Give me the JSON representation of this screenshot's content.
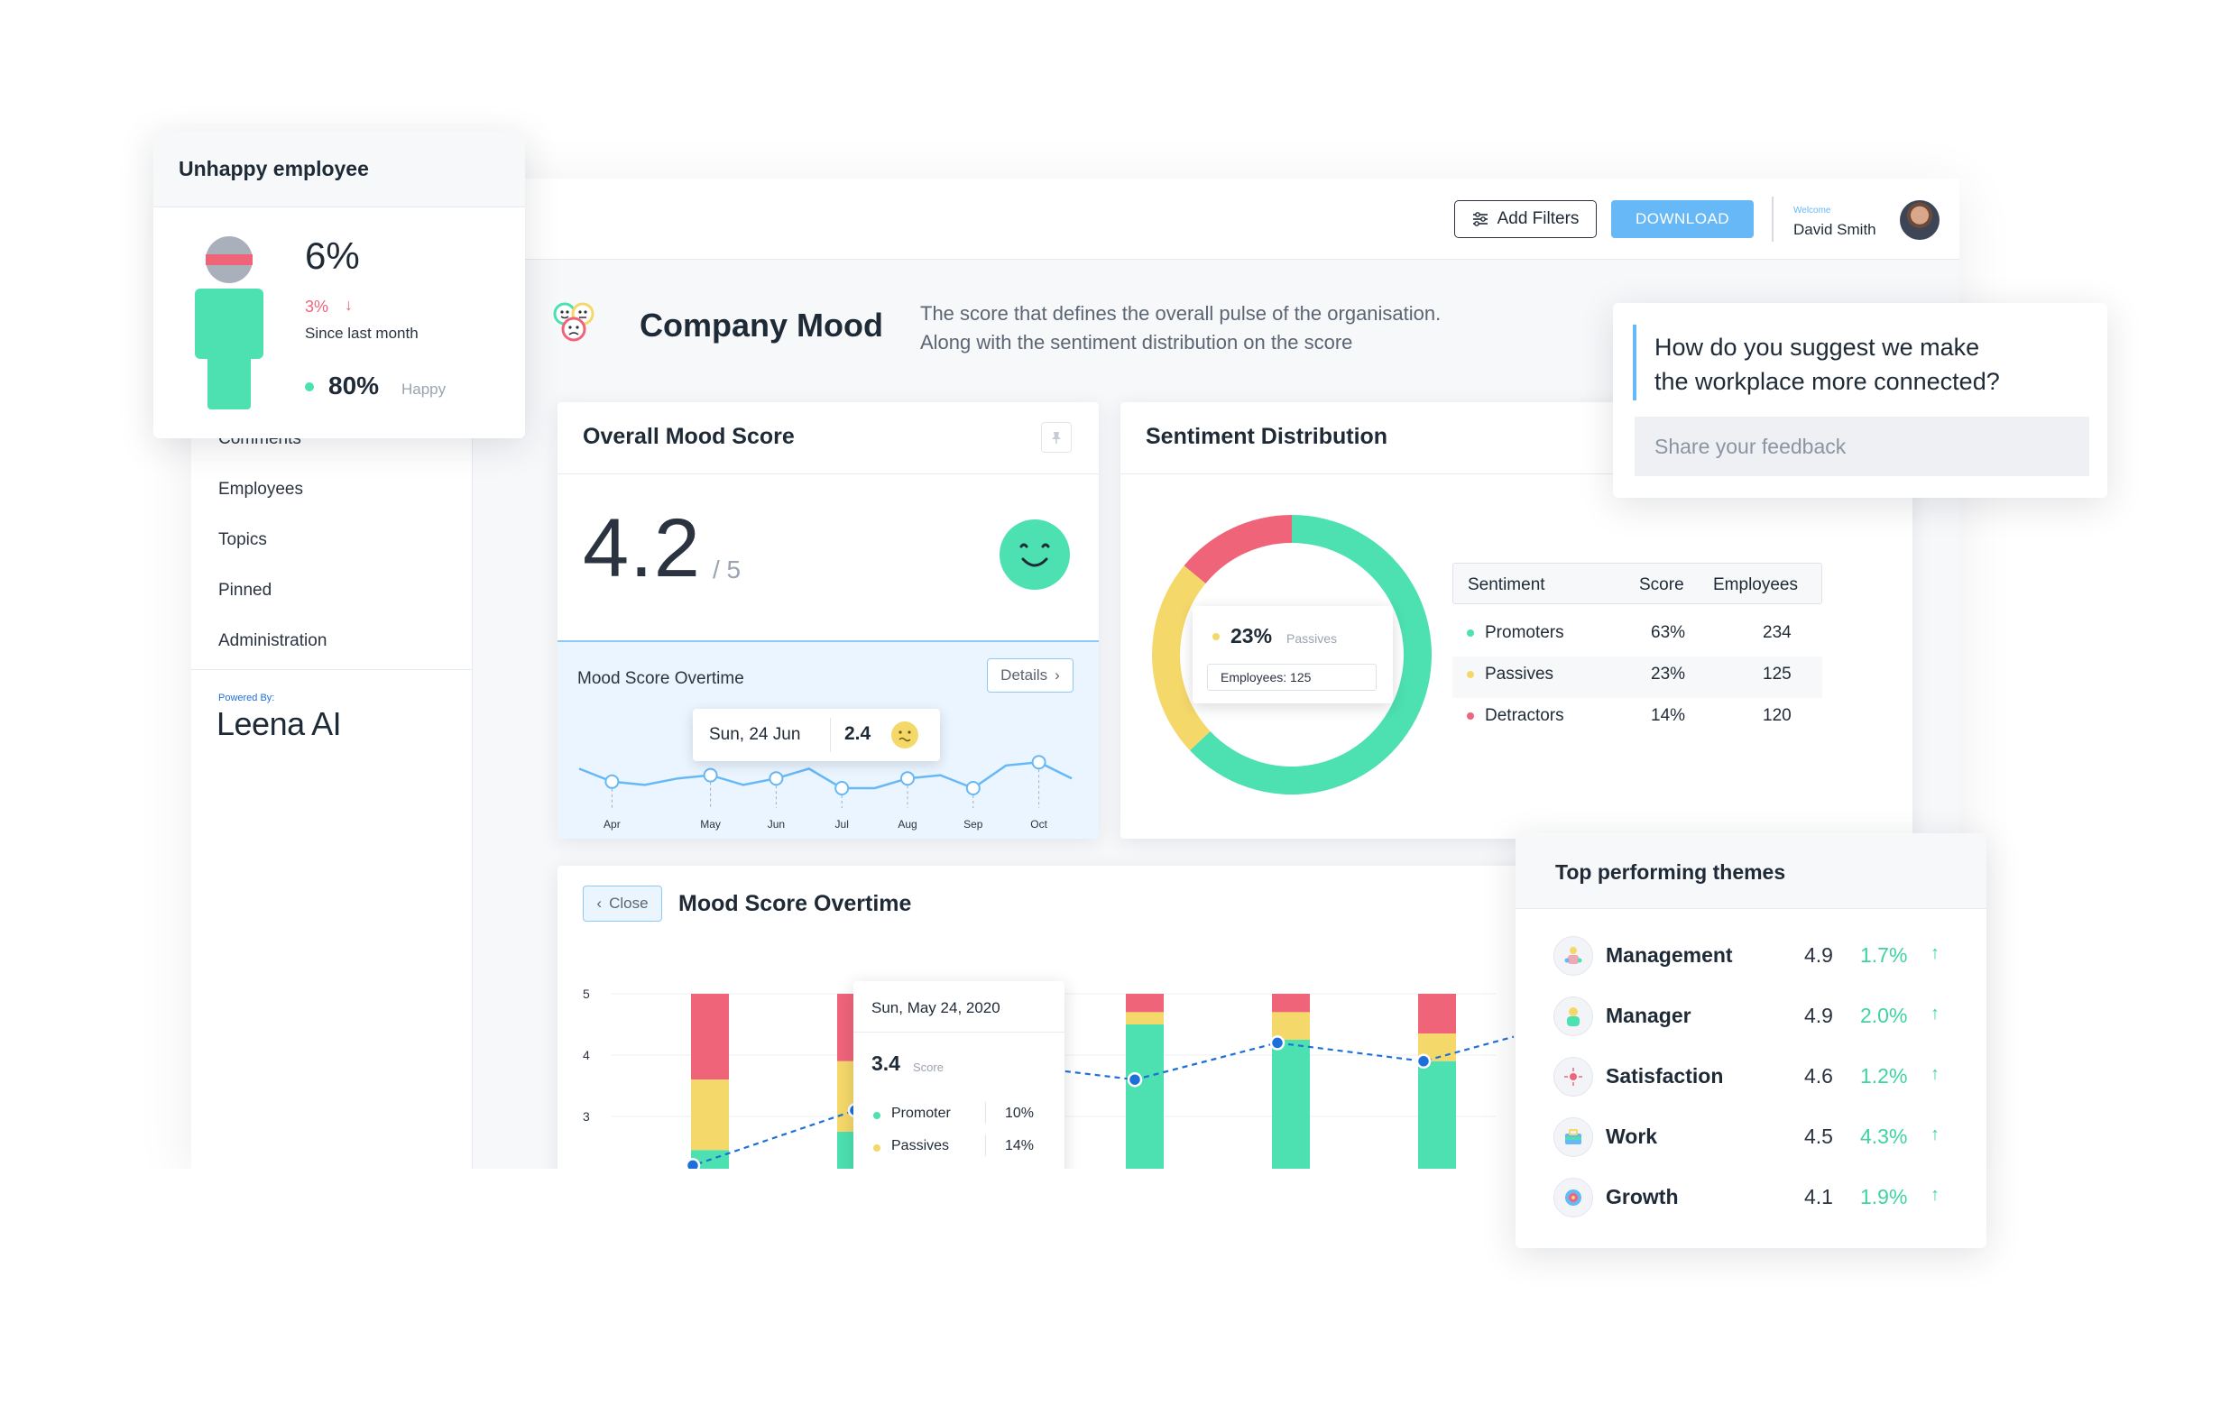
{
  "topbar": {
    "add_filters_label": "Add Filters",
    "download_label": "DOWNLOAD",
    "welcome_label": "Welcome",
    "user_name": "David Smith"
  },
  "sidebar": {
    "items": [
      {
        "label": "Comments"
      },
      {
        "label": "Employees"
      },
      {
        "label": "Topics"
      },
      {
        "label": "Pinned"
      },
      {
        "label": "Administration"
      }
    ],
    "powered_by": "Powered By:",
    "brand": "Leena AI"
  },
  "page_header": {
    "title": "Company Mood",
    "description_line1": "The score that defines the overall pulse of the organisation.",
    "description_line2": "Along with the sentiment distribution on the score"
  },
  "unhappy_card": {
    "title": "Unhappy employee",
    "value": "6%",
    "change": "3%",
    "change_caption": "Since last month",
    "happy_value": "80%",
    "happy_label": "Happy",
    "colors": {
      "figure": "#4de0b0",
      "band": "#f0647a",
      "head": "#a9b0bb"
    }
  },
  "overall_mood": {
    "title": "Overall Mood Score",
    "score": "4.2",
    "out_of": "/ 5",
    "overtime_label": "Mood Score Overtime",
    "details_label": "Details",
    "tooltip_date": "Sun, 24 Jun",
    "tooltip_value": "2.4",
    "spark": {
      "months": [
        "Apr",
        "May",
        "Jun",
        "Jul",
        "Aug",
        "Sep",
        "Oct"
      ],
      "values": [
        3.6,
        3.2,
        3.1,
        3.3,
        3.4,
        3.1,
        3.3,
        3.6,
        3.0,
        3.0,
        3.3,
        3.4,
        3.0,
        3.7,
        3.8,
        3.3
      ],
      "marker_indices": [
        1,
        4,
        6,
        8,
        10,
        12,
        14
      ]
    }
  },
  "sentiment": {
    "title": "Sentiment Distribution",
    "tooltip_pct": "23%",
    "tooltip_label": "Passives",
    "tooltip_employees": "Employees: 125",
    "table_headers": [
      "Sentiment",
      "Score",
      "Employees"
    ],
    "rows": [
      {
        "name": "Promoters",
        "score": "63%",
        "employees": "234",
        "color": "#4de0b0"
      },
      {
        "name": "Passives",
        "score": "23%",
        "employees": "125",
        "color": "#f5d86a"
      },
      {
        "name": "Detractors",
        "score": "14%",
        "employees": "120",
        "color": "#f0647a"
      }
    ],
    "donut": [
      63,
      23,
      14
    ]
  },
  "feedback": {
    "question_line1": "How do you suggest we make",
    "question_line2": "the workplace more connected?",
    "placeholder": "Share your feedback"
  },
  "mood_overtime": {
    "title": "Mood Score Overtime",
    "close_label": "Close",
    "y_ticks": [
      "5",
      "4",
      "3"
    ],
    "bars": [
      {
        "promoter": 0.45,
        "passive": 1.15,
        "detractor": 1.4
      },
      {
        "promoter": 0.85,
        "passive": 1.15,
        "detractor": 1.1
      },
      {
        "promoter": 2.3,
        "passive": 0.2,
        "detractor": 0.3
      },
      {
        "promoter": 2.0,
        "passive": 0.45,
        "detractor": 0.3
      },
      {
        "promoter": 1.85,
        "passive": 0.45,
        "detractor": 0.65
      }
    ],
    "line": [
      2.2,
      3.1,
      3.9,
      3.6,
      4.2,
      3.9,
      4.3
    ],
    "tooltip": {
      "date": "Sun, May 24, 2020",
      "score": "3.4",
      "score_label": "Score",
      "rows": [
        {
          "name": "Promoter",
          "pct": "10%",
          "color": "#4de0b0"
        },
        {
          "name": "Passives",
          "pct": "14%",
          "color": "#f5d86a"
        }
      ]
    }
  },
  "themes": {
    "title": "Top performing themes",
    "rows": [
      {
        "name": "Management",
        "score": "4.9",
        "delta": "1.7%",
        "icon": "management-icon"
      },
      {
        "name": "Manager",
        "score": "4.9",
        "delta": "2.0%",
        "icon": "manager-icon"
      },
      {
        "name": "Satisfaction",
        "score": "4.6",
        "delta": "1.2%",
        "icon": "satisfaction-icon"
      },
      {
        "name": "Work",
        "score": "4.5",
        "delta": "4.3%",
        "icon": "work-icon"
      },
      {
        "name": "Growth",
        "score": "4.1",
        "delta": "1.9%",
        "icon": "growth-icon"
      }
    ]
  },
  "colors": {
    "promoter": "#4de0b0",
    "passive": "#f5d86a",
    "detractor": "#f0647a",
    "accent_blue": "#66b8f6",
    "line_blue": "#1e6fd9"
  }
}
